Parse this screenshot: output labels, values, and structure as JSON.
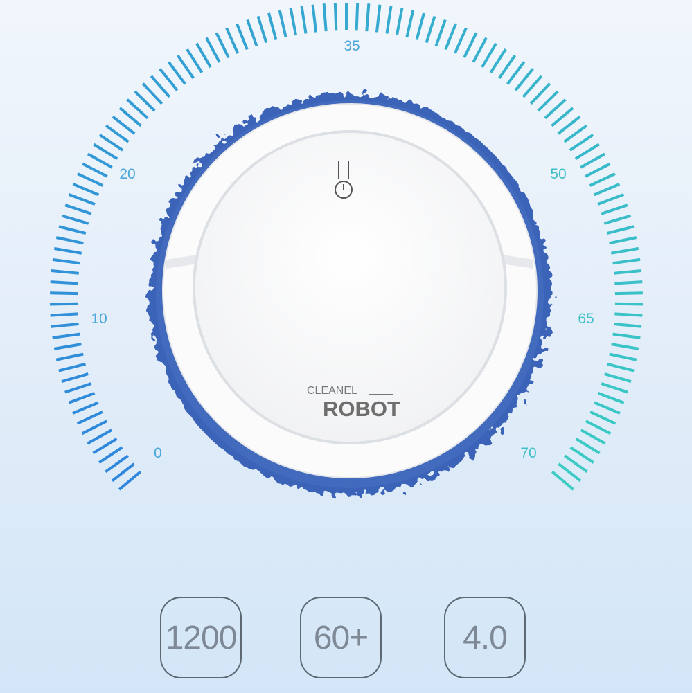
{
  "gauge": {
    "labels": [
      "0",
      "10",
      "20",
      "35",
      "50",
      "65",
      "70"
    ],
    "color_start": "#2f86dc",
    "color_end": "#3cccc4"
  },
  "product": {
    "brand_top": "CLEANEL",
    "brand_bottom": "ROBOT",
    "mop_color": "#3a63b8",
    "icon": "power-icon"
  },
  "specs": [
    "1200",
    "60+",
    "4.0"
  ]
}
